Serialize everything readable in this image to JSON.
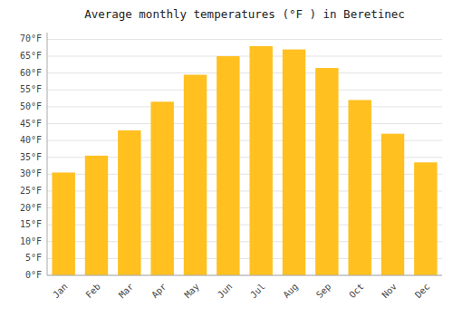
{
  "chart_data": {
    "type": "bar",
    "title": "Average monthly temperatures (°F ) in Beretinec",
    "categories": [
      "Jan",
      "Feb",
      "Mar",
      "Apr",
      "May",
      "Jun",
      "Jul",
      "Aug",
      "Sep",
      "Oct",
      "Nov",
      "Dec"
    ],
    "values": [
      30.5,
      35.5,
      43.0,
      51.5,
      59.5,
      65.0,
      68.0,
      67.0,
      61.5,
      52.0,
      42.0,
      33.5
    ],
    "color": "#FFC020",
    "ylim": [
      0,
      72
    ],
    "yticks": [
      {
        "value": 0,
        "label": "0°F"
      },
      {
        "value": 5,
        "label": "5°F"
      },
      {
        "value": 10,
        "label": "10°F"
      },
      {
        "value": 15,
        "label": "15°F"
      },
      {
        "value": 20,
        "label": "20°F"
      },
      {
        "value": 25,
        "label": "25°F"
      },
      {
        "value": 30,
        "label": "30°F"
      },
      {
        "value": 35,
        "label": "35°F"
      },
      {
        "value": 40,
        "label": "40°F"
      },
      {
        "value": 45,
        "label": "45°F"
      },
      {
        "value": 50,
        "label": "50°F"
      },
      {
        "value": 55,
        "label": "55°F"
      },
      {
        "value": 60,
        "label": "60°F"
      },
      {
        "value": 65,
        "label": "65°F"
      },
      {
        "value": 70,
        "label": "70°F"
      }
    ],
    "grid": true
  }
}
